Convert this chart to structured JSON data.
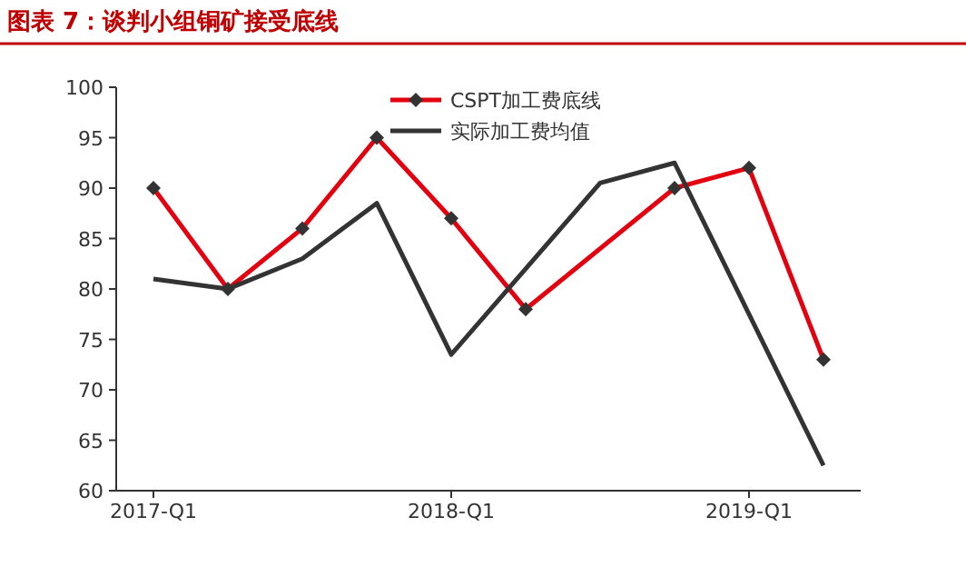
{
  "chart_data": {
    "type": "line",
    "title": "图表 7：谈判小组铜矿接受底线",
    "categories": [
      "2017-Q1",
      null,
      null,
      null,
      "2018-Q1",
      null,
      null,
      null,
      "2019-Q1",
      null
    ],
    "series": [
      {
        "name": "CSPT加工费底线",
        "color": "#e3000f",
        "marker": "diamond",
        "values": [
          90,
          80,
          86,
          95,
          87,
          78,
          null,
          90,
          92,
          73
        ]
      },
      {
        "name": "实际加工费均值",
        "color": "#333333",
        "marker": "none",
        "values": [
          81,
          80,
          83,
          88.5,
          73.5,
          null,
          90.5,
          92.5,
          null,
          62.5
        ]
      }
    ],
    "ylim": [
      60,
      100
    ],
    "yticks": [
      60,
      65,
      70,
      75,
      80,
      85,
      90,
      95,
      100
    ],
    "grid": false,
    "legend": "top right",
    "line_style": "solid"
  }
}
